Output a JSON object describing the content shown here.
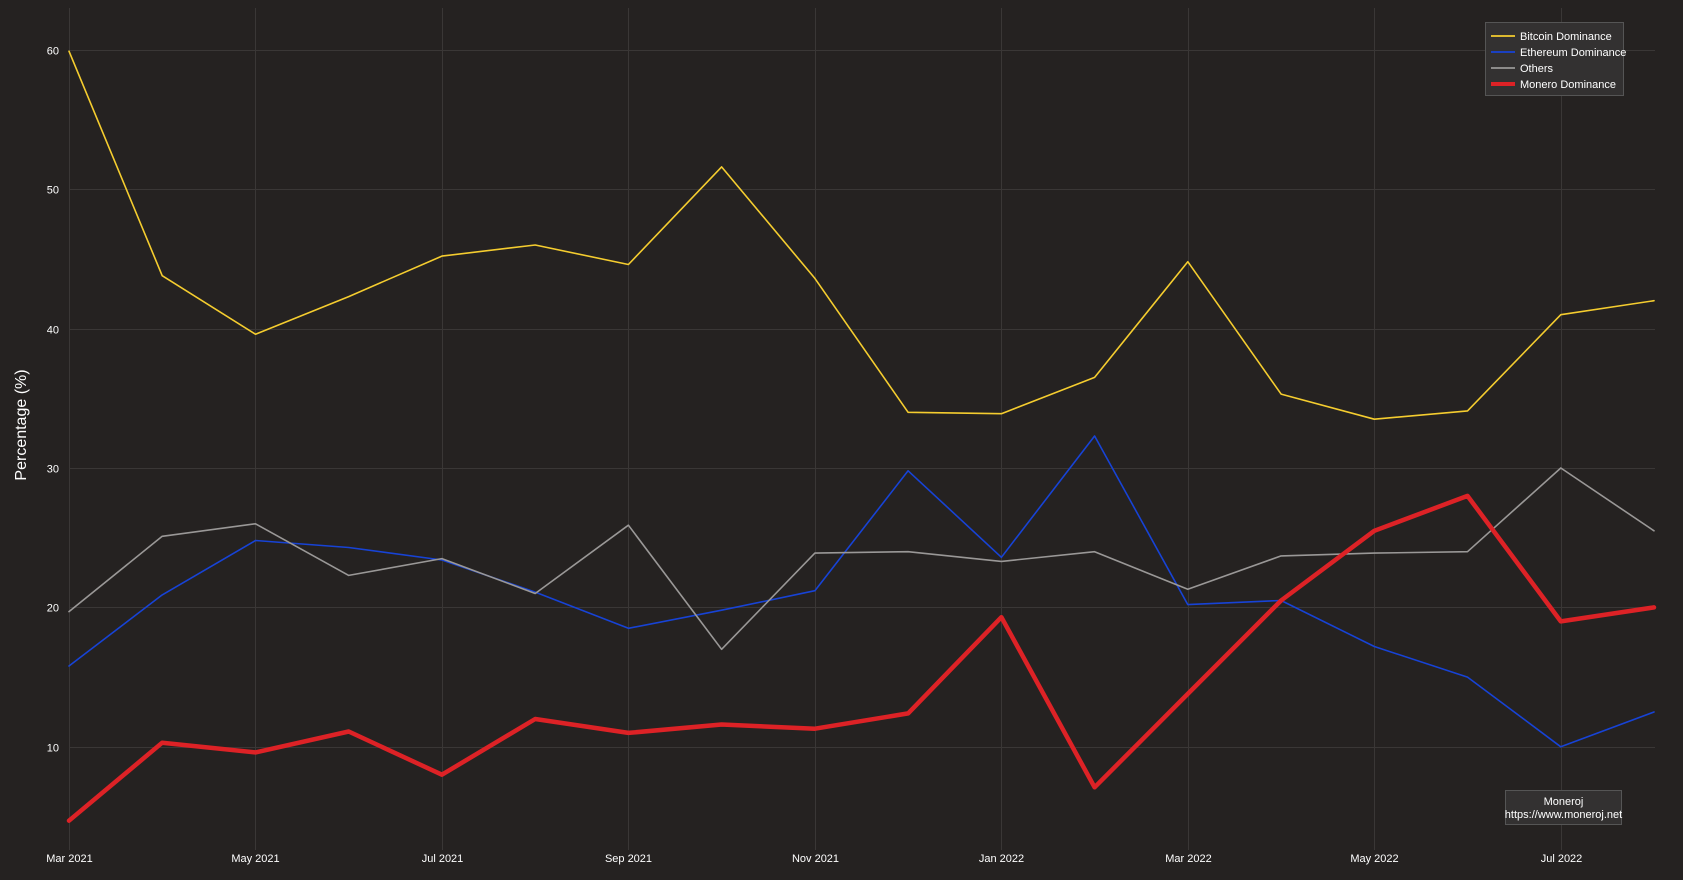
{
  "chart_data": {
    "type": "line",
    "title": "",
    "xlabel": "",
    "ylabel": "Percentage (%)",
    "x": [
      "2021-03",
      "2021-04",
      "2021-05",
      "2021-06",
      "2021-07",
      "2021-08",
      "2021-09",
      "2021-10",
      "2021-11",
      "2021-12",
      "2022-01",
      "2022-02",
      "2022-03",
      "2022-04",
      "2022-05",
      "2022-06",
      "2022-07",
      "2022-08"
    ],
    "x_ticks": [
      {
        "x": "2021-03",
        "label": "Mar 2021"
      },
      {
        "x": "2021-05",
        "label": "May 2021"
      },
      {
        "x": "2021-07",
        "label": "Jul 2021"
      },
      {
        "x": "2021-09",
        "label": "Sep 2021"
      },
      {
        "x": "2021-11",
        "label": "Nov 2021"
      },
      {
        "x": "2022-01",
        "label": "Jan 2022"
      },
      {
        "x": "2022-03",
        "label": "Mar 2022"
      },
      {
        "x": "2022-05",
        "label": "May 2022"
      },
      {
        "x": "2022-07",
        "label": "Jul 2022"
      }
    ],
    "y_ticks": [
      10,
      20,
      30,
      40,
      50,
      60
    ],
    "xlim": [
      "2021-03",
      "2022-08"
    ],
    "ylim": [
      2.6,
      63.0
    ],
    "grid": true,
    "legend_position": "top-right",
    "series": [
      {
        "name": "Bitcoin Dominance",
        "color": "#f5cd2f",
        "values": [
          59.9,
          43.8,
          39.6,
          42.3,
          45.2,
          46.0,
          44.6,
          51.6,
          43.6,
          34.0,
          33.9,
          36.5,
          44.8,
          35.3,
          33.5,
          34.1,
          41.0,
          42.0
        ]
      },
      {
        "name": "Ethereum Dominance",
        "color": "#1743d6",
        "values": [
          15.8,
          20.9,
          24.8,
          24.3,
          23.4,
          21.1,
          18.5,
          19.8,
          21.2,
          29.8,
          23.6,
          32.3,
          20.2,
          20.5,
          17.2,
          15.0,
          10.0,
          12.5
        ]
      },
      {
        "name": "Others",
        "color": "#9a9897",
        "values": [
          19.7,
          25.1,
          26.0,
          22.3,
          23.5,
          21.0,
          25.9,
          17.0,
          23.9,
          24.0,
          23.3,
          24.0,
          21.3,
          23.7,
          23.9,
          24.0,
          30.0,
          25.5
        ]
      },
      {
        "name": "Monero Dominance",
        "color": "#dd2226",
        "values": [
          4.7,
          10.3,
          9.6,
          11.1,
          8.0,
          12.0,
          11.0,
          11.6,
          11.3,
          12.4,
          19.3,
          7.1,
          13.8,
          20.5,
          25.5,
          28.0,
          19.0,
          20.0
        ]
      }
    ]
  },
  "credit": {
    "line1": "Moneroj",
    "line2": "https://www.moneroj.net"
  }
}
